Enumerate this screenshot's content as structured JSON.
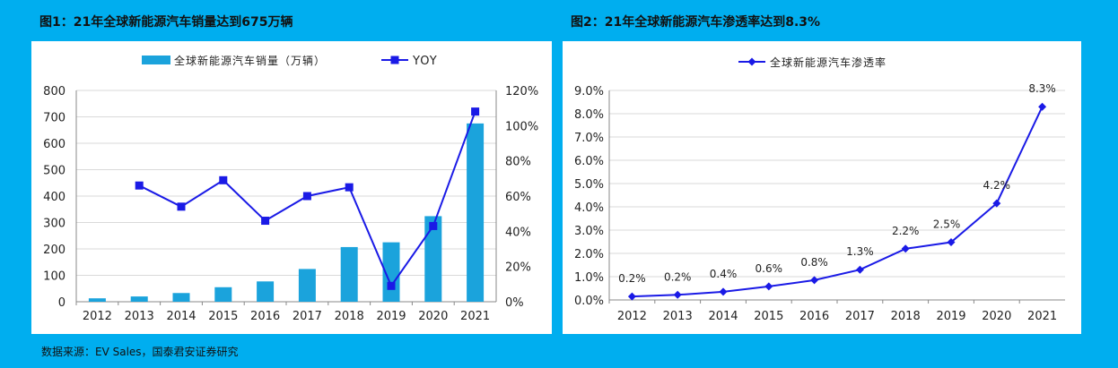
{
  "figure1": {
    "title": "图1：21年全球新能源汽车销量达到675万辆"
  },
  "figure2": {
    "title": "图2：21年全球新能源汽车渗透率达到8.3%"
  },
  "source": "数据来源：EV Sales，国泰君安证券研究",
  "colors": {
    "background": "#00AEEF",
    "bar": "#1BA3DC",
    "line": "#1A1AE6",
    "grid": "#D9D9D9"
  },
  "chart_data": [
    {
      "type": "bar",
      "title": "图1：21年全球新能源汽车销量达到675万辆",
      "categories": [
        "2012",
        "2013",
        "2014",
        "2015",
        "2016",
        "2017",
        "2018",
        "2019",
        "2020",
        "2021"
      ],
      "series": [
        {
          "name": "全球新能源汽车销量（万辆）",
          "type": "bar",
          "axis": "left",
          "values": [
            13,
            20,
            33,
            55,
            77,
            124,
            207,
            225,
            324,
            675
          ]
        },
        {
          "name": "YOY",
          "type": "line",
          "axis": "right",
          "values": [
            null,
            66,
            54,
            69,
            46,
            60,
            65,
            9,
            43,
            108
          ]
        }
      ],
      "ylim": [
        0,
        800
      ],
      "yticks": [
        "0",
        "100",
        "200",
        "300",
        "400",
        "500",
        "600",
        "700",
        "800"
      ],
      "y2lim": [
        0,
        120
      ],
      "y2ticks": [
        "0%",
        "20%",
        "40%",
        "60%",
        "80%",
        "100%",
        "120%"
      ],
      "legend": "top",
      "xlabel": "",
      "ylabel": ""
    },
    {
      "type": "line",
      "title": "图2：21年全球新能源汽车渗透率达到8.3%",
      "categories": [
        "2012",
        "2013",
        "2014",
        "2015",
        "2016",
        "2017",
        "2018",
        "2019",
        "2020",
        "2021"
      ],
      "series": [
        {
          "name": "全球新能源汽车渗透率",
          "values": [
            0.15,
            0.22,
            0.35,
            0.58,
            0.85,
            1.3,
            2.2,
            2.48,
            4.15,
            8.3
          ]
        }
      ],
      "data_labels": [
        "0.2%",
        "0.2%",
        "0.4%",
        "0.6%",
        "0.8%",
        "1.3%",
        "2.2%",
        "2.5%",
        "4.2%",
        "8.3%"
      ],
      "ylim": [
        0,
        9
      ],
      "yticks": [
        "0.0%",
        "1.0%",
        "2.0%",
        "3.0%",
        "4.0%",
        "5.0%",
        "6.0%",
        "7.0%",
        "8.0%",
        "9.0%"
      ],
      "legend": "top",
      "xlabel": "",
      "ylabel": ""
    }
  ]
}
